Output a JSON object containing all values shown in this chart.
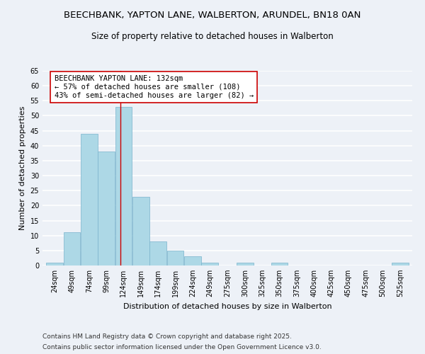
{
  "title": "BEECHBANK, YAPTON LANE, WALBERTON, ARUNDEL, BN18 0AN",
  "subtitle": "Size of property relative to detached houses in Walberton",
  "xlabel": "Distribution of detached houses by size in Walberton",
  "ylabel": "Number of detached properties",
  "bin_labels": [
    "24sqm",
    "49sqm",
    "74sqm",
    "99sqm",
    "124sqm",
    "149sqm",
    "174sqm",
    "199sqm",
    "224sqm",
    "249sqm",
    "275sqm",
    "300sqm",
    "325sqm",
    "350sqm",
    "375sqm",
    "400sqm",
    "425sqm",
    "450sqm",
    "475sqm",
    "500sqm",
    "525sqm"
  ],
  "bin_edges": [
    24,
    49,
    74,
    99,
    124,
    149,
    174,
    199,
    224,
    249,
    275,
    300,
    325,
    350,
    375,
    400,
    425,
    450,
    475,
    500,
    525,
    550
  ],
  "counts": [
    1,
    11,
    44,
    38,
    53,
    23,
    8,
    5,
    3,
    1,
    0,
    1,
    0,
    1,
    0,
    0,
    0,
    0,
    0,
    0,
    1
  ],
  "bar_color": "#ADD8E6",
  "bar_edge_color": "#7ab3cc",
  "vline_x": 132,
  "vline_color": "#cc0000",
  "annotation_text": "BEECHBANK YAPTON LANE: 132sqm\n← 57% of detached houses are smaller (108)\n43% of semi-detached houses are larger (82) →",
  "annotation_box_color": "#ffffff",
  "annotation_box_edge": "#cc0000",
  "ylim": [
    0,
    65
  ],
  "yticks": [
    0,
    5,
    10,
    15,
    20,
    25,
    30,
    35,
    40,
    45,
    50,
    55,
    60,
    65
  ],
  "footer_line1": "Contains HM Land Registry data © Crown copyright and database right 2025.",
  "footer_line2": "Contains public sector information licensed under the Open Government Licence v3.0.",
  "background_color": "#edf1f7",
  "grid_color": "#ffffff",
  "title_fontsize": 9.5,
  "subtitle_fontsize": 8.5,
  "tick_fontsize": 7,
  "axis_label_fontsize": 8,
  "annotation_fontsize": 7.5,
  "footer_fontsize": 6.5
}
